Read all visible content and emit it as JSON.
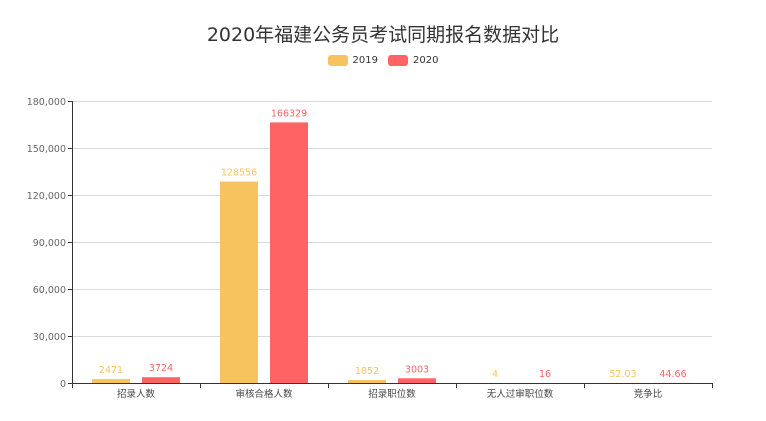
{
  "title": "2020年福建公务员考试同期报名数据对比",
  "legend": [
    {
      "label": "2019",
      "color": "#F7C35F"
    },
    {
      "label": "2020",
      "color": "#FF6363"
    }
  ],
  "chart_data": {
    "type": "bar",
    "title": "2020年福建公务员考试同期报名数据对比",
    "xlabel": "",
    "ylabel": "",
    "ylim": [
      0,
      180000
    ],
    "yticks": [
      "0",
      "30,000",
      "60,000",
      "90,000",
      "120,000",
      "150,000",
      "180,000"
    ],
    "grid": true,
    "legend_position": "top",
    "categories": [
      "招录人数",
      "审核合格人数",
      "招录职位数",
      "无人过审职位数",
      "竞争比"
    ],
    "series": [
      {
        "name": "2019",
        "color": "#F7C35F",
        "values": [
          2471,
          128556,
          1852,
          4,
          52.03
        ],
        "labels": [
          "2471",
          "128556",
          "1852",
          "4",
          "52.03"
        ]
      },
      {
        "name": "2020",
        "color": "#FF6363",
        "values": [
          3724,
          166329,
          3003,
          16,
          44.66
        ],
        "labels": [
          "3724",
          "166329",
          "3003",
          "16",
          "44.66"
        ]
      }
    ]
  }
}
